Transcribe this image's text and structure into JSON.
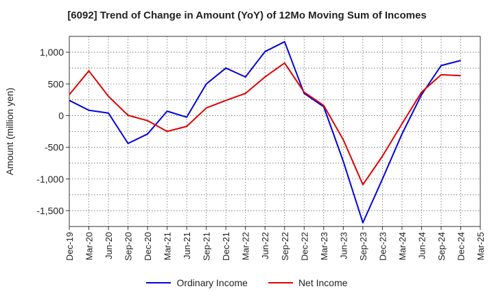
{
  "chart_data": {
    "type": "line",
    "title": "[6092]  Trend of Change in Amount (YoY) of 12Mo Moving Sum of Incomes",
    "xlabel": "",
    "ylabel": "Amount (million yen)",
    "categories": [
      "Dec-19",
      "Mar-20",
      "Jun-20",
      "Sep-20",
      "Dec-20",
      "Mar-21",
      "Jun-21",
      "Sep-21",
      "Dec-21",
      "Mar-22",
      "Jun-22",
      "Sep-22",
      "Dec-22",
      "Mar-23",
      "Jun-23",
      "Sep-23",
      "Dec-23",
      "Mar-24",
      "Jun-24",
      "Sep-24",
      "Dec-24",
      "Mar-25"
    ],
    "ylim": [
      -1750,
      1250
    ],
    "yticks": [
      1000,
      500,
      0,
      -500,
      -1000,
      -1500
    ],
    "ytick_labels": [
      "1,000",
      "500",
      "0",
      "-500",
      "-1,000",
      "-1,500"
    ],
    "grid": true,
    "legend_position": "bottom",
    "series": [
      {
        "name": "Ordinary Income",
        "color": "#0000dd",
        "values": [
          240,
          85,
          40,
          -440,
          -290,
          70,
          -25,
          500,
          750,
          610,
          1010,
          1165,
          350,
          140,
          -720,
          -1690,
          -1000,
          -290,
          330,
          790,
          870,
          null
        ]
      },
      {
        "name": "Net Income",
        "color": "#dd0000",
        "values": [
          330,
          705,
          305,
          5,
          -80,
          -250,
          -170,
          120,
          240,
          350,
          610,
          830,
          370,
          160,
          -380,
          -1090,
          -640,
          -130,
          370,
          645,
          630,
          null
        ]
      }
    ]
  }
}
